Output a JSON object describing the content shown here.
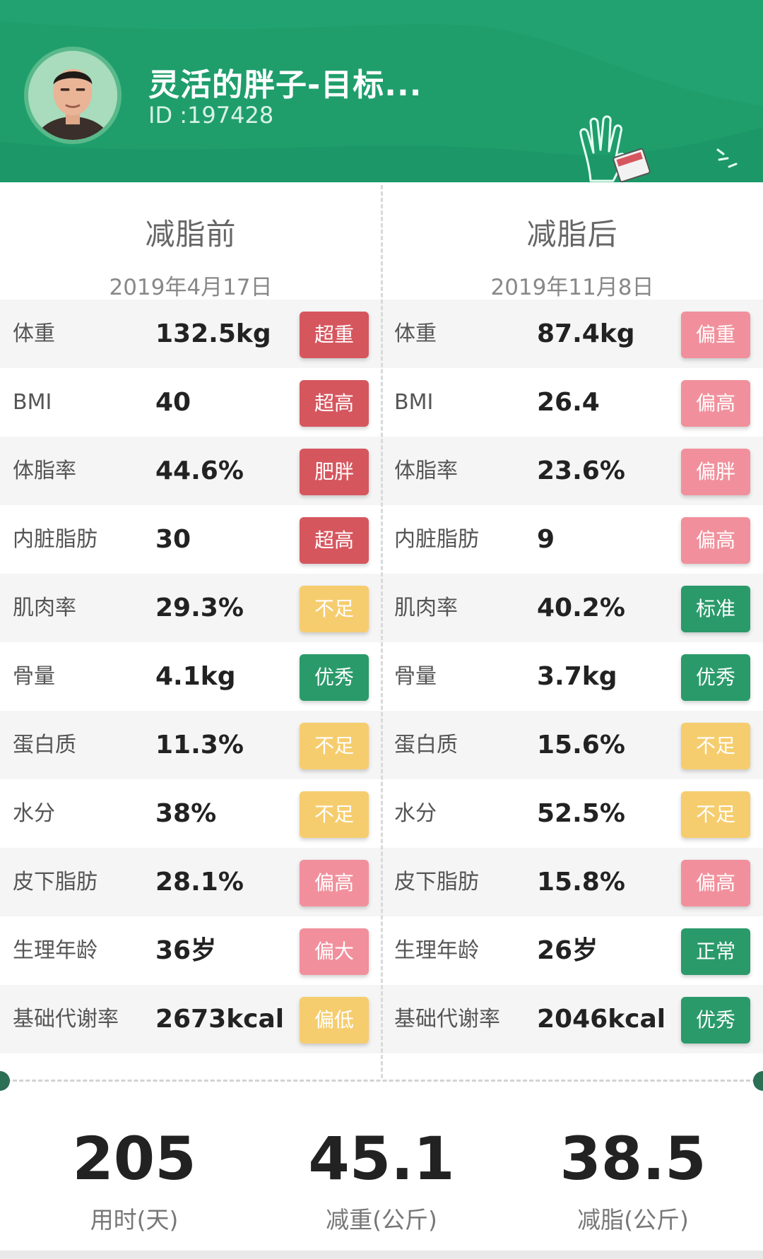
{
  "profile": {
    "name": "灵活的胖子-目标...",
    "id": "ID :197428"
  },
  "colors": {
    "header_green": "#1f9e6c",
    "badge_red": "#d6565e",
    "badge_pink": "#f1909c",
    "badge_yellow": "#f6cd6e",
    "badge_green": "#2a9a6a"
  },
  "before": {
    "title": "减脂前",
    "date": "2019年4月17日",
    "rows": [
      {
        "label": "体重",
        "value": "132.5kg",
        "status": "超重",
        "level": "red"
      },
      {
        "label": "BMI",
        "value": "40",
        "status": "超高",
        "level": "red"
      },
      {
        "label": "体脂率",
        "value": "44.6%",
        "status": "肥胖",
        "level": "red"
      },
      {
        "label": "内脏脂肪",
        "value": "30",
        "status": "超高",
        "level": "red"
      },
      {
        "label": "肌肉率",
        "value": "29.3%",
        "status": "不足",
        "level": "yellow"
      },
      {
        "label": "骨量",
        "value": "4.1kg",
        "status": "优秀",
        "level": "green"
      },
      {
        "label": "蛋白质",
        "value": "11.3%",
        "status": "不足",
        "level": "yellow"
      },
      {
        "label": "水分",
        "value": "38%",
        "status": "不足",
        "level": "yellow"
      },
      {
        "label": "皮下脂肪",
        "value": "28.1%",
        "status": "偏高",
        "level": "pink"
      },
      {
        "label": "生理年龄",
        "value": "36岁",
        "status": "偏大",
        "level": "pink"
      },
      {
        "label": "基础代谢率",
        "value": "2673kcal",
        "status": "偏低",
        "level": "yellow"
      }
    ]
  },
  "after": {
    "title": "减脂后",
    "date": "2019年11月8日",
    "rows": [
      {
        "label": "体重",
        "value": "87.4kg",
        "status": "偏重",
        "level": "pink"
      },
      {
        "label": "BMI",
        "value": "26.4",
        "status": "偏高",
        "level": "pink"
      },
      {
        "label": "体脂率",
        "value": "23.6%",
        "status": "偏胖",
        "level": "pink"
      },
      {
        "label": "内脏脂肪",
        "value": "9",
        "status": "偏高",
        "level": "pink"
      },
      {
        "label": "肌肉率",
        "value": "40.2%",
        "status": "标准",
        "level": "green"
      },
      {
        "label": "骨量",
        "value": "3.7kg",
        "status": "优秀",
        "level": "green"
      },
      {
        "label": "蛋白质",
        "value": "15.6%",
        "status": "不足",
        "level": "yellow"
      },
      {
        "label": "水分",
        "value": "52.5%",
        "status": "不足",
        "level": "yellow"
      },
      {
        "label": "皮下脂肪",
        "value": "15.8%",
        "status": "偏高",
        "level": "pink"
      },
      {
        "label": "生理年龄",
        "value": "26岁",
        "status": "正常",
        "level": "green"
      },
      {
        "label": "基础代谢率",
        "value": "2046kcal",
        "status": "优秀",
        "level": "green"
      }
    ]
  },
  "summary": [
    {
      "number": "205",
      "caption": "用时(天)"
    },
    {
      "number": "45.1",
      "caption": "减重(公斤)"
    },
    {
      "number": "38.5",
      "caption": "减脂(公斤)"
    }
  ]
}
